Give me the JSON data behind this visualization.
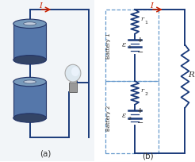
{
  "fig_width": 2.46,
  "fig_height": 2.05,
  "dpi": 100,
  "bg_color": "#ffffff",
  "label_a": "(a)",
  "label_b": "(b)",
  "current_label": "I",
  "R_label": "R",
  "battery1_label": "Battery 1",
  "battery2_label": "Battery 2",
  "r1_label": "r",
  "r2_label": "r",
  "eps1_label": "ε",
  "eps2_label": "ε",
  "wire_color": "#1a3a7a",
  "arrow_color": "#cc2200",
  "dashed_box_color": "#6699cc",
  "text_color": "#333333",
  "bat_body_color": "#5577aa",
  "bat_dark_color": "#334466",
  "bat_light_color": "#7799bb",
  "bg_left": "#f0f4f8"
}
